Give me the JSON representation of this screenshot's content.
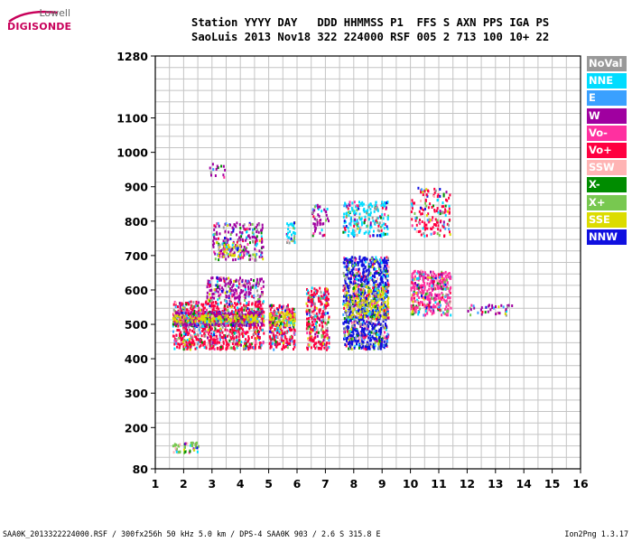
{
  "logo": {
    "top": "Lowell",
    "main": "DIGISONDE"
  },
  "header": {
    "line1": "Station YYYY DAY   DDD HHMMSS P1  FFS S AXN PPS IGA PS",
    "line2": "SaoLuis 2013 Nov18 322 224000 RSF 005 2 713 100 10+ 22"
  },
  "footer": {
    "left": "SAA0K_2013322224000.RSF / 300fx256h 50 kHz 5.0 km / DPS-4 SAA0K 903 / 2.6 S 315.8 E",
    "right": "Ion2Png 1.3.17"
  },
  "legend": [
    {
      "label": "NoVal",
      "color": "#999999"
    },
    {
      "label": "NNE",
      "color": "#00dcff"
    },
    {
      "label": "E",
      "color": "#3aa0ff"
    },
    {
      "label": "W",
      "color": "#a000a0"
    },
    {
      "label": "Vo-",
      "color": "#ff30a0"
    },
    {
      "label": "Vo+",
      "color": "#ff0040"
    },
    {
      "label": "SSW",
      "color": "#ffb4b4"
    },
    {
      "label": "X-",
      "color": "#008c00"
    },
    {
      "label": "X+",
      "color": "#78c850"
    },
    {
      "label": "SSE",
      "color": "#dcdc00"
    },
    {
      "label": "NNW",
      "color": "#1010e0"
    }
  ],
  "chart_data": {
    "type": "scatter",
    "xlim": [
      1,
      16
    ],
    "ylim": [
      80,
      1280
    ],
    "x_ticks": [
      "1",
      "2",
      "3",
      "4",
      "5",
      "6",
      "7",
      "8",
      "9",
      "10",
      "11",
      "12",
      "13",
      "14",
      "15",
      "16"
    ],
    "y_ticks": [
      "1280",
      "1100",
      "1000",
      "900",
      "800",
      "700",
      "600",
      "500",
      "400",
      "300",
      "200",
      "80"
    ],
    "grid": true,
    "clusters": [
      {
        "x": [
          1.6,
          2.5
        ],
        "y": [
          130,
          160
        ],
        "series": "X+",
        "density": 50
      },
      {
        "x": [
          1.6,
          4.8
        ],
        "y": [
          430,
          570
        ],
        "series": "Vo+",
        "density": 900
      },
      {
        "x": [
          1.6,
          4.8
        ],
        "y": [
          500,
          540
        ],
        "series": "W",
        "density": 500
      },
      {
        "x": [
          1.6,
          4.8
        ],
        "y": [
          510,
          530
        ],
        "series": "SSE",
        "density": 300
      },
      {
        "x": [
          2.8,
          4.8
        ],
        "y": [
          570,
          640
        ],
        "series": "W",
        "density": 200
      },
      {
        "x": [
          3.0,
          4.8
        ],
        "y": [
          690,
          800
        ],
        "series": "W",
        "density": 220
      },
      {
        "x": [
          3.2,
          4.0
        ],
        "y": [
          700,
          740
        ],
        "series": "SSE",
        "density": 60
      },
      {
        "x": [
          2.9,
          3.6
        ],
        "y": [
          930,
          970
        ],
        "series": "W",
        "density": 15
      },
      {
        "x": [
          5.0,
          5.9
        ],
        "y": [
          430,
          560
        ],
        "series": "Vo+",
        "density": 280
      },
      {
        "x": [
          5.0,
          5.9
        ],
        "y": [
          500,
          540
        ],
        "series": "SSE",
        "density": 120
      },
      {
        "x": [
          5.6,
          5.9
        ],
        "y": [
          740,
          800
        ],
        "series": "NNE",
        "density": 40
      },
      {
        "x": [
          6.3,
          7.1
        ],
        "y": [
          430,
          610
        ],
        "series": "Vo+",
        "density": 300
      },
      {
        "x": [
          6.5,
          7.1
        ],
        "y": [
          760,
          850
        ],
        "series": "W",
        "density": 50
      },
      {
        "x": [
          7.6,
          9.2
        ],
        "y": [
          430,
          700
        ],
        "series": "NNW",
        "density": 1000
      },
      {
        "x": [
          7.6,
          9.2
        ],
        "y": [
          520,
          620
        ],
        "series": "SSE",
        "density": 250
      },
      {
        "x": [
          7.6,
          9.2
        ],
        "y": [
          760,
          860
        ],
        "series": "NNE",
        "density": 220
      },
      {
        "x": [
          10.0,
          11.4
        ],
        "y": [
          530,
          660
        ],
        "series": "Vo-",
        "density": 400
      },
      {
        "x": [
          10.0,
          11.4
        ],
        "y": [
          760,
          900
        ],
        "series": "Vo+",
        "density": 150
      },
      {
        "x": [
          12.0,
          13.6
        ],
        "y": [
          530,
          560
        ],
        "series": "W",
        "density": 40
      }
    ]
  }
}
